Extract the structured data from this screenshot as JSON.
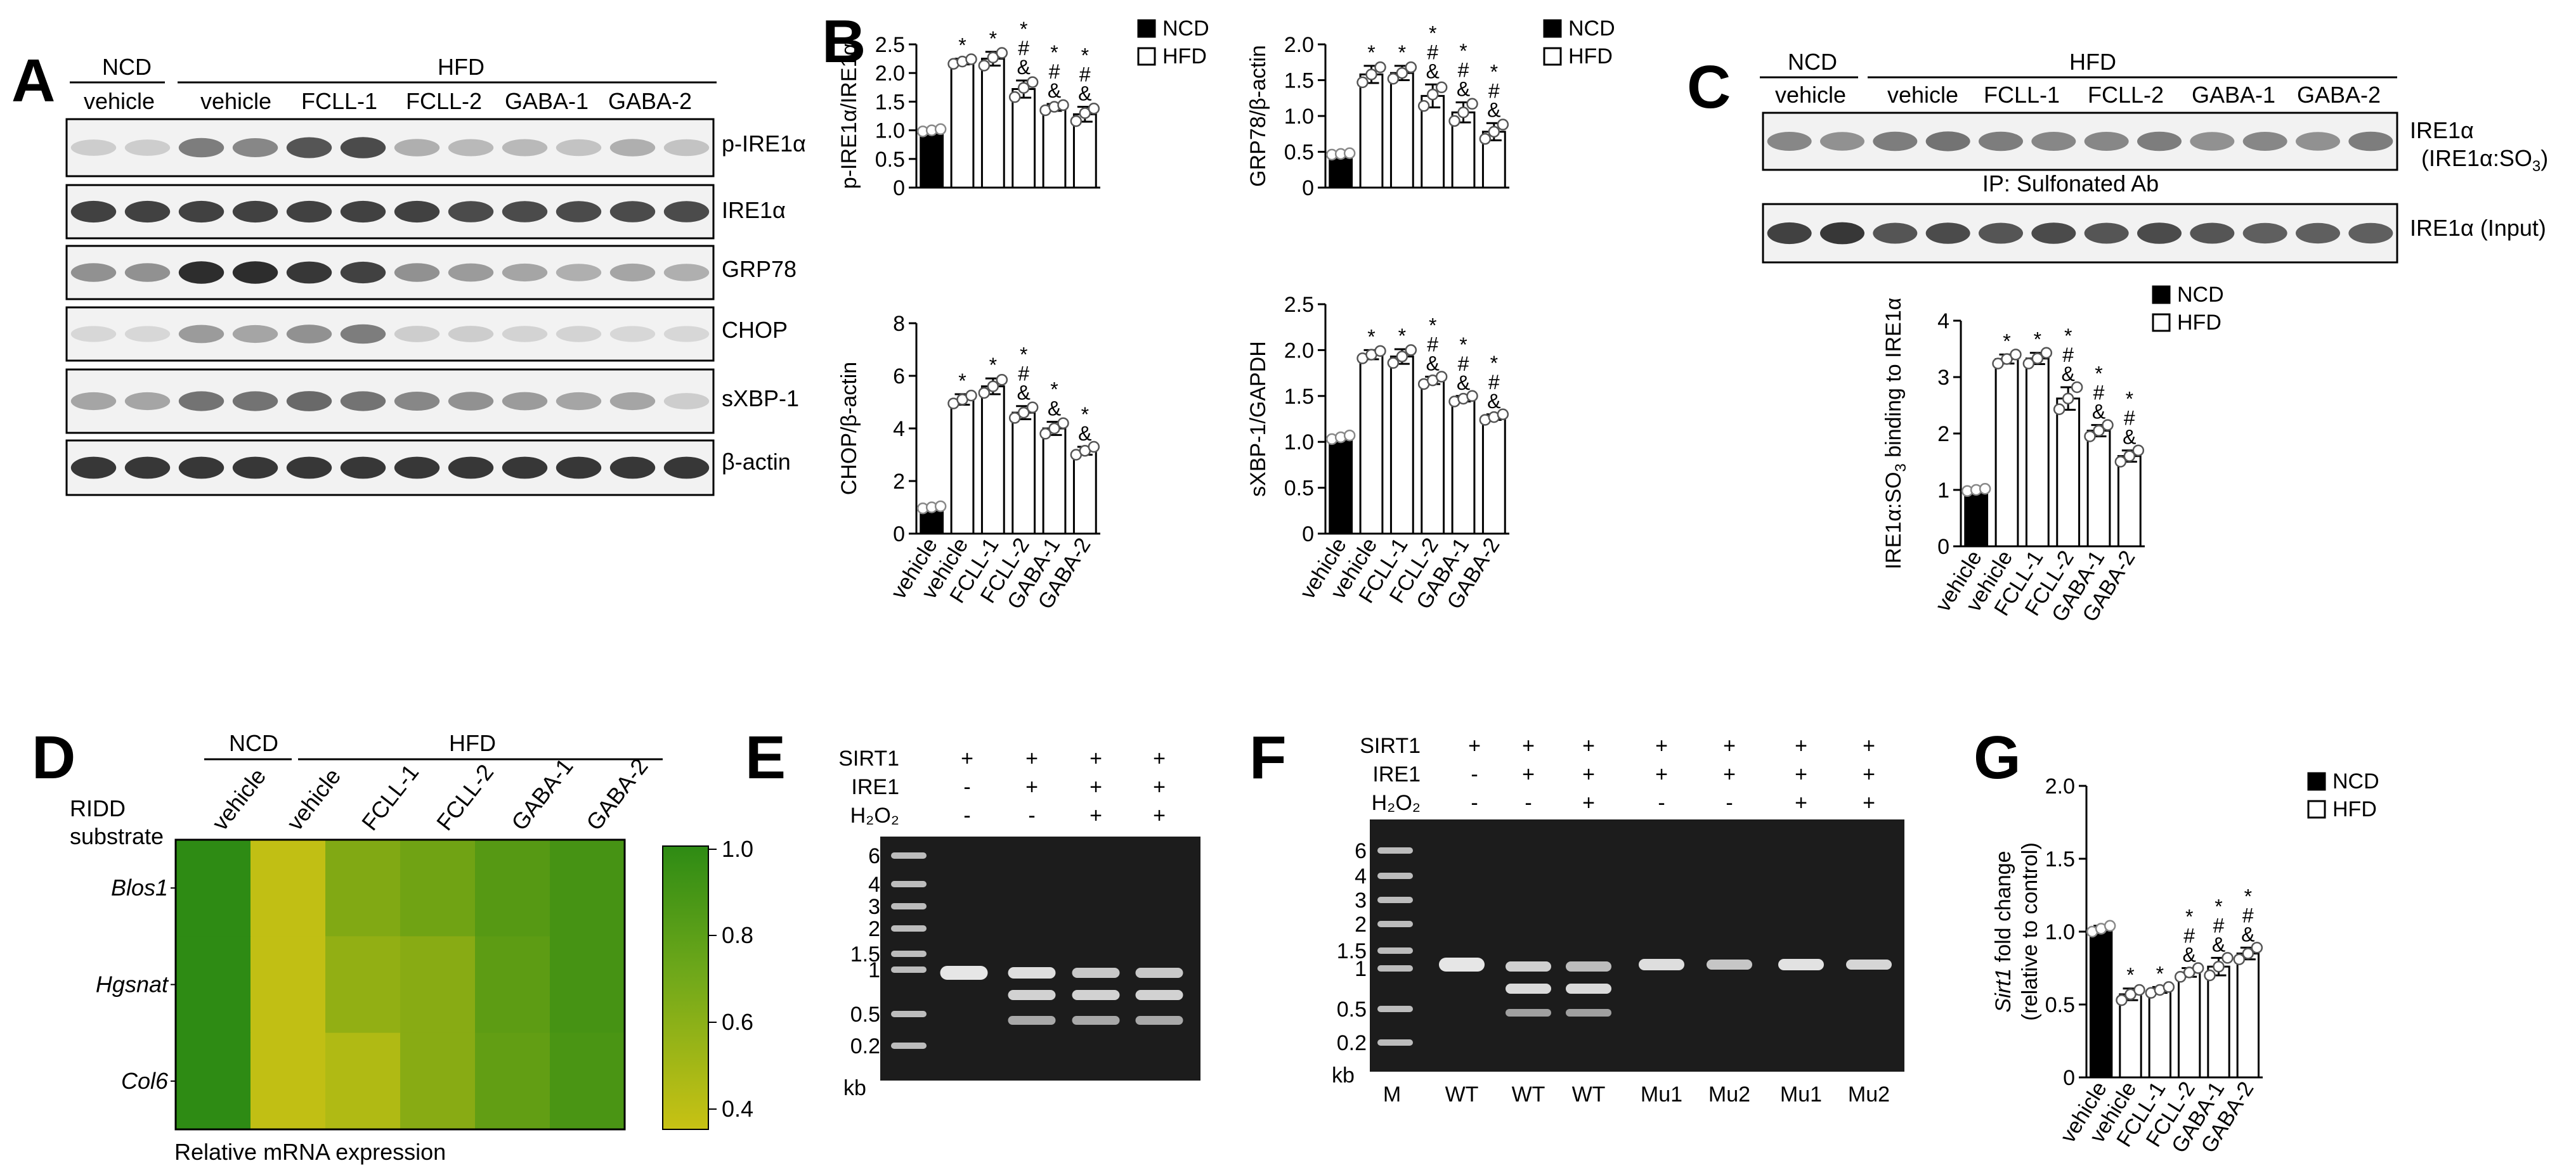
{
  "panels": {
    "A": {
      "letter": "A",
      "group_labels": [
        "NCD",
        "HFD"
      ],
      "lane_labels": [
        "vehicle",
        "vehicle",
        "FCLL-1",
        "FCLL-2",
        "GABA-1",
        "GABA-2"
      ],
      "blot_labels": [
        "p-IRE1α",
        "IRE1α",
        "GRP78",
        "CHOP",
        "sXBP-1",
        "β-actin"
      ]
    },
    "B": {
      "letter": "B"
    },
    "C": {
      "letter": "C",
      "group_labels": [
        "NCD",
        "HFD"
      ],
      "lane_labels": [
        "vehicle",
        "vehicle",
        "FCLL-1",
        "FCLL-2",
        "GABA-1",
        "GABA-2"
      ],
      "blot_label_1_line1": "IRE1α",
      "blot_label_1_line2": "(IRE1α:SO",
      "blot_label_1_sub": "3",
      "blot_label_1_close": ")",
      "ip_label": "IP: Sulfonated Ab",
      "blot_label_2": "IRE1α (Input)"
    },
    "D": {
      "letter": "D",
      "group_labels": [
        "NCD",
        "HFD"
      ],
      "row_header_line1": "RIDD",
      "row_header_line2": "substrate",
      "column_labels": [
        "vehicle",
        "vehicle",
        "FCLL-1",
        "FCLL-2",
        "GABA-1",
        "GABA-2"
      ],
      "row_labels": [
        "Blos1",
        "Hgsnat",
        "Col6"
      ],
      "colorbar_ticks": [
        "1.0",
        "0.8",
        "0.6",
        "0.4"
      ],
      "footer": "Relative mRNA expression",
      "colors": {
        "high": "#2e8b14",
        "low": "#c8c214"
      }
    },
    "E": {
      "letter": "E",
      "row_labels": [
        "SIRT1",
        "IRE1",
        "H₂O₂"
      ],
      "conditions": [
        [
          "+",
          "-",
          "-"
        ],
        [
          "+",
          "+",
          "-"
        ],
        [
          "+",
          "+",
          "+"
        ],
        [
          "+",
          "+",
          "+"
        ]
      ],
      "ladder_ticks": [
        "6",
        "4",
        "3",
        "2",
        "1.5",
        "1",
        "0.5",
        "0.2"
      ],
      "unit": "kb"
    },
    "F": {
      "letter": "F",
      "row_labels": [
        "SIRT1",
        "IRE1",
        "H₂O₂"
      ],
      "conditions": [
        [
          "+",
          "-",
          "-"
        ],
        [
          "+",
          "+",
          "-"
        ],
        [
          "+",
          "+",
          "+"
        ],
        [
          "+",
          "+",
          "-"
        ],
        [
          "+",
          "+",
          "-"
        ],
        [
          "+",
          "+",
          "+"
        ],
        [
          "+",
          "+",
          "+"
        ]
      ],
      "ladder_ticks": [
        "6",
        "4",
        "3",
        "2",
        "1.5",
        "1",
        "0.5",
        "0.2"
      ],
      "unit": "kb",
      "lane_labels": [
        "M",
        "WT",
        "WT",
        "WT",
        "Mu1",
        "Mu2",
        "Mu1",
        "Mu2"
      ]
    },
    "G": {
      "letter": "G"
    }
  },
  "chart_data": [
    {
      "id": "B1",
      "type": "bar",
      "categories": [
        "vehicle",
        "vehicle",
        "FCLL-1",
        "FCLL-2",
        "GABA-1",
        "GABA-2"
      ],
      "values": [
        1.0,
        2.2,
        2.25,
        1.72,
        1.4,
        1.28
      ],
      "errors": [
        0.02,
        0.05,
        0.12,
        0.15,
        0.06,
        0.13
      ],
      "points": [
        [
          0.98,
          1.0,
          1.02
        ],
        [
          2.16,
          2.2,
          2.24
        ],
        [
          2.13,
          2.27,
          2.35
        ],
        [
          1.58,
          1.74,
          1.84
        ],
        [
          1.35,
          1.41,
          1.44
        ],
        [
          1.16,
          1.3,
          1.38
        ]
      ],
      "annotations": [
        "",
        "*",
        "*",
        "*\n#\n&",
        "*\n#\n&",
        "*\n#\n&"
      ],
      "ylabel": "p-IRE1α/IRE1α",
      "ylim": [
        0,
        2.5
      ],
      "yticks": [
        "0",
        "0.5",
        "1.0",
        "1.5",
        "2.0",
        "2.5"
      ],
      "legend": [
        "NCD",
        "HFD"
      ],
      "legend_position": "top-right"
    },
    {
      "id": "B2",
      "type": "bar",
      "categories": [
        "vehicle",
        "vehicle",
        "FCLL-1",
        "FCLL-2",
        "GABA-1",
        "GABA-2"
      ],
      "values": [
        0.47,
        1.58,
        1.6,
        1.28,
        1.05,
        0.78
      ],
      "errors": [
        0.02,
        0.12,
        0.1,
        0.16,
        0.14,
        0.12
      ],
      "points": [
        [
          0.46,
          0.47,
          0.48
        ],
        [
          1.47,
          1.58,
          1.68
        ],
        [
          1.52,
          1.6,
          1.68
        ],
        [
          1.14,
          1.3,
          1.4
        ],
        [
          0.93,
          1.05,
          1.17
        ],
        [
          0.68,
          0.78,
          0.88
        ]
      ],
      "annotations": [
        "",
        "*",
        "*",
        "*\n#\n&",
        "*\n#\n&",
        "*\n#\n&"
      ],
      "ylabel": "GRP78/β-actin",
      "ylim": [
        0,
        2.0
      ],
      "yticks": [
        "0",
        "0.5",
        "1.0",
        "1.5",
        "2.0"
      ],
      "legend": [
        "NCD",
        "HFD"
      ],
      "legend_position": "top-right"
    },
    {
      "id": "B3",
      "type": "bar",
      "categories": [
        "vehicle",
        "vehicle",
        "FCLL-1",
        "FCLL-2",
        "GABA-1",
        "GABA-2"
      ],
      "values": [
        1.0,
        5.1,
        5.6,
        4.6,
        4.0,
        3.15
      ],
      "errors": [
        0.05,
        0.2,
        0.3,
        0.25,
        0.25,
        0.15
      ],
      "points": [
        [
          0.96,
          1.0,
          1.04
        ],
        [
          4.95,
          5.1,
          5.25
        ],
        [
          5.35,
          5.6,
          5.85
        ],
        [
          4.4,
          4.6,
          4.8
        ],
        [
          3.8,
          4.0,
          4.2
        ],
        [
          3.0,
          3.15,
          3.3
        ]
      ],
      "annotations": [
        "",
        "*",
        "*",
        "*\n#\n&",
        "*\n&",
        "*\n&"
      ],
      "ylabel": "CHOP/β-actin",
      "ylim": [
        0,
        8
      ],
      "yticks": [
        "0",
        "2",
        "4",
        "6",
        "8"
      ]
    },
    {
      "id": "B4",
      "type": "bar",
      "categories": [
        "vehicle",
        "vehicle",
        "FCLL-1",
        "FCLL-2",
        "GABA-1",
        "GABA-2"
      ],
      "values": [
        1.05,
        1.95,
        1.93,
        1.67,
        1.47,
        1.27
      ],
      "errors": [
        0.02,
        0.05,
        0.08,
        0.04,
        0.03,
        0.03
      ],
      "points": [
        [
          1.03,
          1.05,
          1.07
        ],
        [
          1.91,
          1.95,
          1.99
        ],
        [
          1.86,
          1.93,
          2.0
        ],
        [
          1.63,
          1.67,
          1.71
        ],
        [
          1.44,
          1.47,
          1.5
        ],
        [
          1.24,
          1.27,
          1.3
        ]
      ],
      "annotations": [
        "",
        "*",
        "*",
        "*\n#\n&",
        "*\n#\n&",
        "*\n#\n&"
      ],
      "ylabel": "sXBP-1/GAPDH",
      "ylim": [
        0,
        2.5
      ],
      "yticks": [
        "0",
        "0.5",
        "1.0",
        "1.5",
        "2.0",
        "2.5"
      ]
    },
    {
      "id": "C",
      "type": "bar",
      "categories": [
        "vehicle",
        "vehicle",
        "FCLL-1",
        "FCLL-2",
        "GABA-1",
        "GABA-2"
      ],
      "values": [
        1.0,
        3.32,
        3.33,
        2.62,
        2.05,
        1.6
      ],
      "errors": [
        0.02,
        0.08,
        0.1,
        0.2,
        0.1,
        0.1
      ],
      "points": [
        [
          0.98,
          1.0,
          1.02
        ],
        [
          3.24,
          3.32,
          3.4
        ],
        [
          3.24,
          3.33,
          3.43
        ],
        [
          2.43,
          2.62,
          2.82
        ],
        [
          1.95,
          2.05,
          2.15
        ],
        [
          1.5,
          1.6,
          1.7
        ]
      ],
      "annotations": [
        "",
        "*",
        "*",
        "*\n#\n&",
        "*\n#\n&",
        "*\n#\n&"
      ],
      "ylabel_parts": [
        "IRE1α:SO",
        "3",
        " binding to IRE1α"
      ],
      "ylim": [
        0,
        4
      ],
      "yticks": [
        "0",
        "1",
        "2",
        "3",
        "4"
      ],
      "legend": [
        "NCD",
        "HFD"
      ],
      "legend_position": "top-right"
    },
    {
      "id": "D",
      "type": "heatmap",
      "rows": [
        "Blos1",
        "Hgsnat",
        "Col6"
      ],
      "columns": [
        "vehicle",
        "vehicle",
        "FCLL-1",
        "FCLL-2",
        "GABA-1",
        "GABA-2"
      ],
      "values": [
        [
          1.0,
          0.38,
          0.65,
          0.72,
          0.83,
          0.9
        ],
        [
          1.0,
          0.38,
          0.58,
          0.62,
          0.8,
          0.9
        ],
        [
          1.0,
          0.38,
          0.45,
          0.62,
          0.78,
          0.88
        ]
      ],
      "colorbar_range": [
        0.35,
        1.0
      ]
    },
    {
      "id": "G",
      "type": "bar",
      "categories": [
        "vehicle",
        "vehicle",
        "FCLL-1",
        "FCLL-2",
        "GABA-1",
        "GABA-2"
      ],
      "values": [
        1.02,
        0.57,
        0.6,
        0.72,
        0.76,
        0.85
      ],
      "errors": [
        0.02,
        0.04,
        0.02,
        0.03,
        0.06,
        0.04
      ],
      "points": [
        [
          1.0,
          1.02,
          1.04
        ],
        [
          0.53,
          0.57,
          0.6
        ],
        [
          0.58,
          0.6,
          0.62
        ],
        [
          0.69,
          0.72,
          0.75
        ],
        [
          0.7,
          0.76,
          0.82
        ],
        [
          0.81,
          0.85,
          0.89
        ]
      ],
      "annotations": [
        "",
        "*",
        "*",
        "*\n#\n&",
        "*\n#\n&",
        "*\n#\n&"
      ],
      "ylabel_parts": [
        "Sirt1",
        " fold change",
        "(relative to control)"
      ],
      "ylim": [
        0,
        2.0
      ],
      "yticks": [
        "0",
        "0.5",
        "1.0",
        "1.5",
        "2.0"
      ],
      "legend": [
        "NCD",
        "HFD"
      ],
      "legend_position": "top-right"
    }
  ]
}
